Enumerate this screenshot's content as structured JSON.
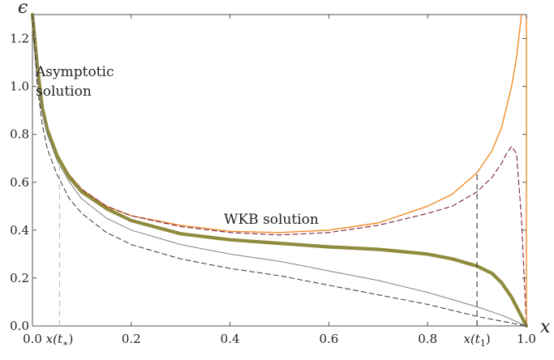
{
  "chart_data": {
    "type": "line",
    "xlabel": "x",
    "ylabel": "ϵ",
    "xlim": [
      0,
      1.0
    ],
    "ylim": [
      0,
      1.3
    ],
    "x_ticks": [
      "0.0",
      "0.2",
      "0.4",
      "0.6",
      "0.8",
      "1.0"
    ],
    "y_ticks": [
      "0.0",
      "0.2",
      "0.4",
      "0.6",
      "0.8",
      "1.0",
      "1.2"
    ],
    "x_special_ticks": [
      {
        "label": "x(t*)",
        "x": 0.055
      },
      {
        "label": "x(t1)",
        "x": 0.9
      }
    ],
    "annotations": [
      {
        "text": "Asymptotic",
        "x": 0.01,
        "y": 1.16
      },
      {
        "text": "solution",
        "x": 0.01,
        "y": 1.05
      },
      {
        "text": "WKB solution",
        "x": 0.43,
        "y": 0.42
      }
    ],
    "vertical_lines": [
      {
        "x": 0.055,
        "y_top": 0.69,
        "color": "#bbbbbb",
        "style": "dashed"
      },
      {
        "x": 0.9,
        "y_top": 0.64,
        "color": "#333333",
        "style": "dashed"
      },
      {
        "x": 1.0,
        "y_top": 1.3,
        "color": "#f28c28",
        "style": "solid"
      }
    ],
    "series": [
      {
        "color": "#f28c28",
        "width": 1.4,
        "style": "solid",
        "x": [
          0.0,
          0.01,
          0.02,
          0.03,
          0.05,
          0.075,
          0.1,
          0.15,
          0.2,
          0.3,
          0.4,
          0.5,
          0.6,
          0.7,
          0.8,
          0.85,
          0.9,
          0.93,
          0.95,
          0.97,
          0.98,
          0.99
        ],
        "y": [
          1.3,
          1.08,
          0.91,
          0.82,
          0.71,
          0.63,
          0.57,
          0.5,
          0.46,
          0.42,
          0.395,
          0.39,
          0.4,
          0.43,
          0.5,
          0.55,
          0.64,
          0.73,
          0.83,
          1.0,
          1.12,
          1.3
        ]
      },
      {
        "color": "#7a2040",
        "width": 1.1,
        "style": "dashed",
        "x": [
          0.0,
          0.01,
          0.02,
          0.03,
          0.05,
          0.075,
          0.1,
          0.15,
          0.2,
          0.3,
          0.4,
          0.5,
          0.6,
          0.7,
          0.8,
          0.85,
          0.9,
          0.93,
          0.95,
          0.96,
          0.97,
          0.98,
          0.99,
          1.0
        ],
        "y": [
          1.3,
          1.08,
          0.91,
          0.82,
          0.71,
          0.63,
          0.57,
          0.5,
          0.46,
          0.415,
          0.39,
          0.38,
          0.39,
          0.42,
          0.47,
          0.5,
          0.56,
          0.62,
          0.68,
          0.72,
          0.75,
          0.72,
          0.45,
          0.0
        ]
      },
      {
        "color": "#8f8a3c",
        "width": 4.2,
        "style": "solid",
        "x": [
          0.0,
          0.01,
          0.02,
          0.03,
          0.05,
          0.075,
          0.1,
          0.15,
          0.2,
          0.3,
          0.4,
          0.5,
          0.6,
          0.7,
          0.8,
          0.85,
          0.9,
          0.93,
          0.95,
          0.97,
          0.98,
          0.99,
          1.0
        ],
        "y": [
          1.3,
          1.08,
          0.91,
          0.82,
          0.71,
          0.62,
          0.56,
          0.49,
          0.44,
          0.385,
          0.36,
          0.345,
          0.33,
          0.32,
          0.3,
          0.28,
          0.25,
          0.22,
          0.18,
          0.12,
          0.08,
          0.04,
          0.0
        ]
      },
      {
        "color": "#7f7f7f",
        "width": 1.0,
        "style": "solid",
        "x": [
          0.0,
          0.01,
          0.02,
          0.03,
          0.05,
          0.075,
          0.1,
          0.15,
          0.2,
          0.3,
          0.4,
          0.5,
          0.6,
          0.7,
          0.8,
          0.9,
          0.95,
          1.0
        ],
        "y": [
          1.3,
          1.05,
          0.89,
          0.8,
          0.69,
          0.6,
          0.53,
          0.45,
          0.4,
          0.34,
          0.3,
          0.27,
          0.23,
          0.19,
          0.14,
          0.08,
          0.045,
          0.0
        ]
      },
      {
        "color": "#333333",
        "width": 1.0,
        "style": "dashed",
        "x": [
          0.0,
          0.01,
          0.02,
          0.03,
          0.05,
          0.075,
          0.1,
          0.15,
          0.2,
          0.3,
          0.4,
          0.5,
          0.6,
          0.7,
          0.8,
          0.9,
          0.95,
          1.0
        ],
        "y": [
          1.3,
          1.0,
          0.84,
          0.74,
          0.63,
          0.53,
          0.47,
          0.39,
          0.34,
          0.28,
          0.24,
          0.21,
          0.17,
          0.13,
          0.09,
          0.04,
          0.02,
          0.0
        ]
      }
    ]
  }
}
